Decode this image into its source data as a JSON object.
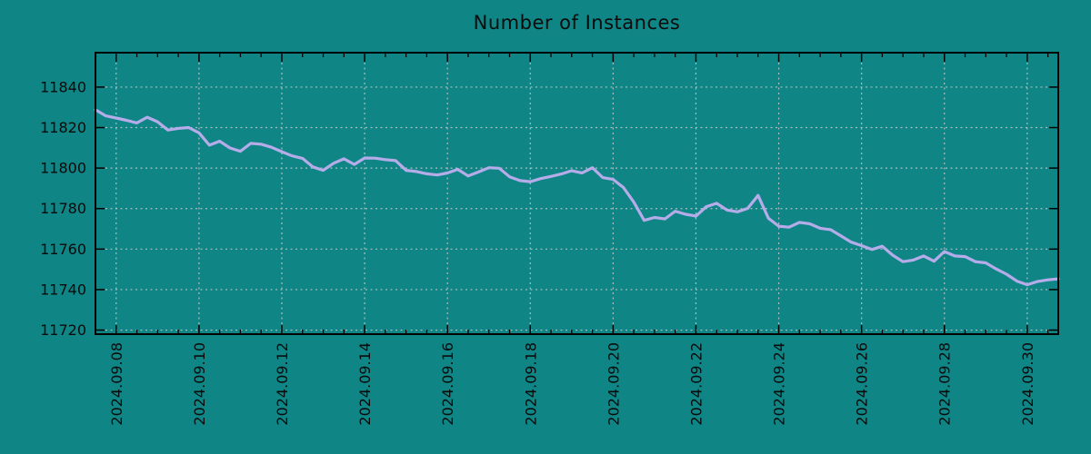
{
  "title": "Number of Instances",
  "colors": {
    "background": "#0f8585",
    "line": "#b5ace9",
    "grid": "#c8c8c8",
    "axis": "#000000",
    "text": "#0b0b0b"
  },
  "chart_data": {
    "type": "line",
    "title": "Number of Instances",
    "xlabel": "",
    "ylabel": "",
    "legend_position": "none",
    "grid": true,
    "x_unit": "days since 2024-09-08",
    "x_tick_labels": [
      "2024.09.08",
      "2024.09.10",
      "2024.09.12",
      "2024.09.14",
      "2024.09.16",
      "2024.09.18",
      "2024.09.20",
      "2024.09.22",
      "2024.09.24",
      "2024.09.26",
      "2024.09.28",
      "2024.09.30"
    ],
    "x_tick_positions": [
      0,
      2,
      4,
      6,
      8,
      10,
      12,
      14,
      16,
      18,
      20,
      22
    ],
    "x_minor_tick_step": 0.5,
    "x_range": [
      -0.5,
      22.75
    ],
    "y_ticks": [
      11720,
      11740,
      11760,
      11780,
      11800,
      11820,
      11840
    ],
    "y_range": [
      11718,
      11857
    ],
    "series": [
      {
        "name": "instances",
        "x_start": -0.5,
        "x_step": 0.25,
        "values": [
          11828.8,
          11825.8,
          11824.7,
          11823.6,
          11822.3,
          11825.1,
          11822.9,
          11818.8,
          11819.6,
          11820.0,
          11817.4,
          11811.3,
          11813.3,
          11809.9,
          11808.3,
          11812.2,
          11811.8,
          11810.3,
          11808.1,
          11806.0,
          11804.8,
          11800.6,
          11798.9,
          11802.4,
          11804.6,
          11801.8,
          11805.0,
          11804.9,
          11804.2,
          11803.7,
          11798.9,
          11798.3,
          11797.2,
          11796.6,
          11797.6,
          11799.4,
          11796.1,
          11798.1,
          11800.2,
          11799.9,
          11795.7,
          11793.8,
          11793.3,
          11794.8,
          11795.9,
          11797.1,
          11798.7,
          11797.6,
          11800.2,
          11795.3,
          11794.4,
          11790.4,
          11783.2,
          11774.2,
          11775.6,
          11774.9,
          11778.7,
          11777.2,
          11776.3,
          11780.9,
          11782.6,
          11779.3,
          11778.4,
          11780.1,
          11786.5,
          11775.2,
          11771.3,
          11770.8,
          11773.2,
          11772.5,
          11770.3,
          11769.6,
          11766.5,
          11763.4,
          11761.7,
          11759.8,
          11761.4,
          11757.0,
          11753.8,
          11754.6,
          11756.6,
          11754.0,
          11758.8,
          11756.6,
          11756.3,
          11753.8,
          11753.2,
          11750.2,
          11747.6,
          11744.2,
          11742.4,
          11744.0,
          11744.8,
          11745.3
        ]
      }
    ]
  }
}
